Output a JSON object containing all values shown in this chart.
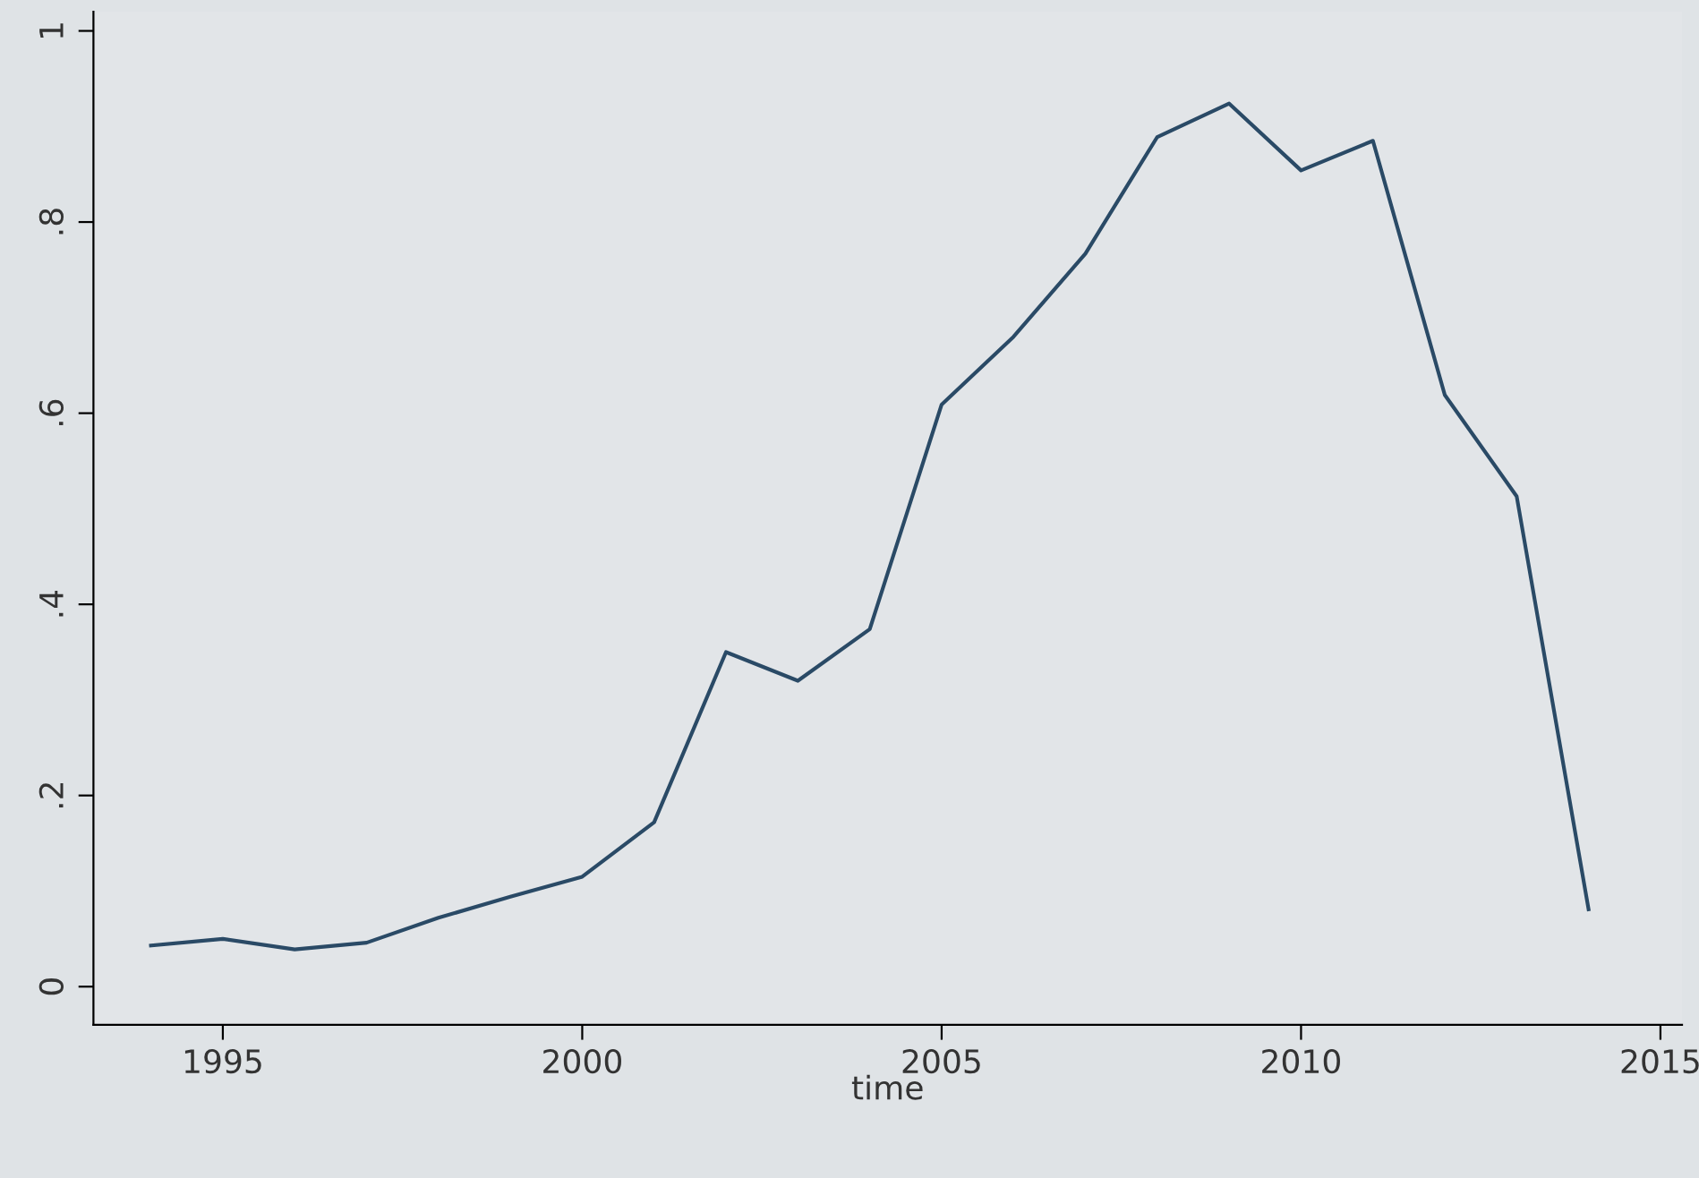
{
  "chart_data": {
    "type": "line",
    "xlabel": "time",
    "x": [
      1994,
      1995,
      1996,
      1997,
      1998,
      1999,
      2000,
      2001,
      2002,
      2003,
      2004,
      2005,
      2006,
      2007,
      2008,
      2009,
      2010,
      2011,
      2012,
      2013,
      2014
    ],
    "series": [
      {
        "color": "#2a4a66",
        "values": [
          0.043,
          0.05,
          0.039,
          0.046,
          0.072,
          0.094,
          0.115,
          0.172,
          0.35,
          0.32,
          0.374,
          0.609,
          0.68,
          0.767,
          0.889,
          0.924,
          0.854,
          0.885,
          0.619,
          0.513,
          0.081
        ]
      }
    ],
    "xlim": [
      1993.2,
      2015.3
    ],
    "xticks": [
      1995,
      2000,
      2005,
      2010,
      2015
    ],
    "ylim": [
      -0.04,
      1.02
    ],
    "yticks": [
      {
        "value": 0,
        "label": "0"
      },
      {
        "value": 0.2,
        "label": ".2"
      },
      {
        "value": 0.4,
        "label": ".4"
      },
      {
        "value": 0.6,
        "label": ".6"
      },
      {
        "value": 0.8,
        "label": ".8"
      },
      {
        "value": 1,
        "label": "1"
      }
    ],
    "grid": false,
    "legend": false
  }
}
